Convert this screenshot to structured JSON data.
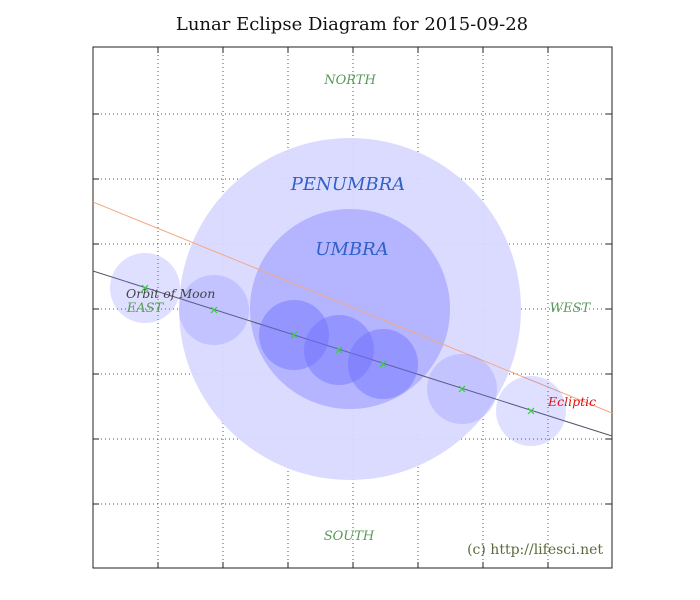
{
  "title": "Lunar Eclipse Diagram for 2015-09-28",
  "directions": {
    "north": "NORTH",
    "south": "SOUTH",
    "east": "EAST",
    "west": "WEST"
  },
  "zones": {
    "penumbra": "PENUMBRA",
    "umbra": "UMBRA"
  },
  "lines": {
    "orbit_label": "Orbit of Moon",
    "ecliptic_label": "Ecliptic"
  },
  "credit": "(c) http://lifesci.net",
  "moon_position_count": 7,
  "colors": {
    "penumbra": "#d9d9ff",
    "umbra": "#aaaaff",
    "moon": "#6f6fff",
    "moon_marker": "#32d232",
    "orbit_line": "#555566",
    "ecliptic_line": "#f4a882",
    "zone_text": "#3060c8",
    "direction_text": "#5a9a5a",
    "ecliptic_text": "#dd1111",
    "orbit_text": "#444444",
    "credit_text": "#5a6a3a",
    "grid": "#555555"
  }
}
